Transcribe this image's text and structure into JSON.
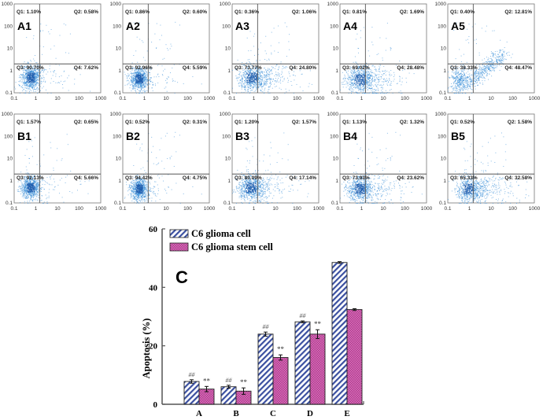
{
  "flow_panels": {
    "axis_ticks": [
      "0.1",
      "1",
      "10",
      "100",
      "1000"
    ],
    "rows": [
      [
        {
          "id": "A1",
          "q1": "Q1: 1.10%",
          "q2": "Q2: 0.58%",
          "q3": "Q3: 90.70%",
          "q4": "Q4: 7.62%"
        },
        {
          "id": "A2",
          "q1": "Q1: 0.86%",
          "q2": "Q2: 0.60%",
          "q3": "Q3: 92.96%",
          "q4": "Q4: 5.59%"
        },
        {
          "id": "A3",
          "q1": "Q1: 0.36%",
          "q2": "Q2: 1.06%",
          "q3": "Q3: 73.77%",
          "q4": "Q4: 24.80%"
        },
        {
          "id": "A4",
          "q1": "Q1: 0.81%",
          "q2": "Q2: 1.69%",
          "q3": "Q3: 69.02%",
          "q4": "Q4: 28.48%"
        },
        {
          "id": "A5",
          "q1": "Q1: 0.40%",
          "q2": "Q2: 12.81%",
          "q3": "Q3: 38.33%",
          "q4": "Q4: 48.47%"
        }
      ],
      [
        {
          "id": "B1",
          "q1": "Q1: 1.57%",
          "q2": "Q2: 0.65%",
          "q3": "Q3: 92.13%",
          "q4": "Q4: 5.66%"
        },
        {
          "id": "B2",
          "q1": "Q1: 0.52%",
          "q2": "Q2: 0.31%",
          "q3": "Q3: 94.42%",
          "q4": "Q4: 4.75%"
        },
        {
          "id": "B3",
          "q1": "Q1: 1.20%",
          "q2": "Q2: 1.57%",
          "q3": "Q3: 80.09%",
          "q4": "Q4: 17.14%"
        },
        {
          "id": "B4",
          "q1": "Q1: 1.13%",
          "q2": "Q2: 1.32%",
          "q3": "Q3: 73.93%",
          "q4": "Q4: 23.62%"
        },
        {
          "id": "B5",
          "q1": "Q1: 0.52%",
          "q2": "Q2: 1.58%",
          "q3": "Q3: 65.33%",
          "q4": "Q4: 32.58%"
        }
      ]
    ]
  },
  "chart_data": {
    "type": "bar",
    "panel_label": "C",
    "title": "",
    "xlabel": "",
    "ylabel": "Apoptosis (%)",
    "ylim": [
      0,
      60
    ],
    "yticks": [
      "0",
      "20",
      "40",
      "60"
    ],
    "categories": [
      "A",
      "B",
      "C",
      "D",
      "E"
    ],
    "legend_position": "top-left",
    "series": [
      {
        "name": "C6 glioma cell",
        "pattern": "diagonal-stripes",
        "color": "#3a4fa0",
        "values": [
          7.8,
          6.0,
          24.0,
          28.2,
          48.5
        ],
        "errors": [
          0.6,
          0.5,
          0.7,
          0.3,
          0.3
        ],
        "annotations": [
          "##",
          "##",
          "##",
          "##",
          ""
        ]
      },
      {
        "name": "C6 glioma stem cell",
        "pattern": "checkered",
        "color": "#c0449a",
        "values": [
          5.2,
          4.5,
          16.0,
          24.0,
          32.4
        ],
        "errors": [
          0.9,
          1.1,
          0.9,
          1.5,
          0.3
        ],
        "annotations": [
          "**",
          "**",
          "**",
          "**",
          ""
        ]
      }
    ]
  },
  "colors": {
    "scatter_dot": "#3a8fd8",
    "scatter_dense": "#1f5fb0",
    "quadrant_line": "#555555",
    "stripe_blue": "#3a4fa0",
    "check_magenta": "#c0449a"
  }
}
